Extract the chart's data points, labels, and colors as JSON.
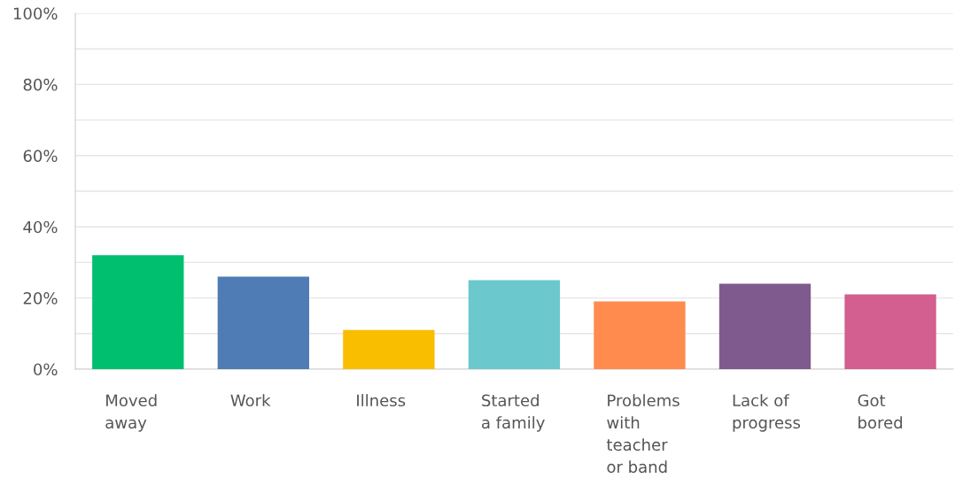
{
  "chart_data": {
    "type": "bar",
    "categories": [
      "Moved\naway",
      "Work",
      "Illness",
      "Started\na family",
      "Problems\nwith\nteacher\nor band",
      "Lack of\nprogress",
      "Got\nbored"
    ],
    "values": [
      32,
      26,
      11,
      25,
      19,
      24,
      21
    ],
    "colors": [
      "#00bf6f",
      "#507cb6",
      "#f9be00",
      "#6bc8cd",
      "#ff8b4f",
      "#7f5a8f",
      "#d25f90"
    ],
    "ylim": [
      0,
      100
    ],
    "yticks": [
      {
        "value": 0,
        "label": "0%"
      },
      {
        "value": 10,
        "label": null
      },
      {
        "value": 20,
        "label": "20%"
      },
      {
        "value": 30,
        "label": null
      },
      {
        "value": 40,
        "label": "40%"
      },
      {
        "value": 50,
        "label": null
      },
      {
        "value": 60,
        "label": "60%"
      },
      {
        "value": 70,
        "label": null
      },
      {
        "value": 80,
        "label": "80%"
      },
      {
        "value": 90,
        "label": null
      },
      {
        "value": 100,
        "label": "100%"
      }
    ],
    "grid": "y"
  }
}
